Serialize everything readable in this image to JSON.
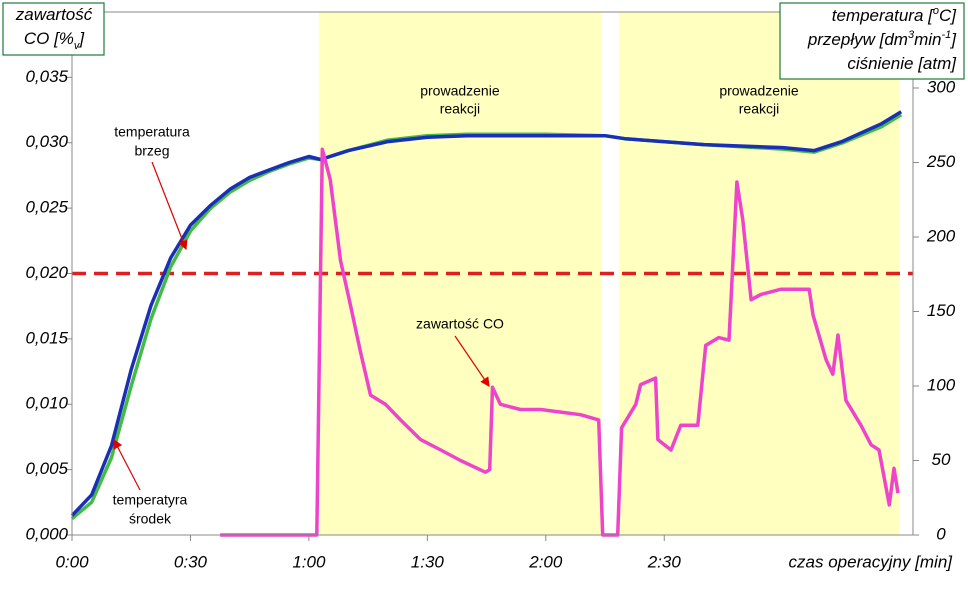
{
  "chart_data": {
    "type": "line",
    "ylabel": [
      [
        {
          "text": "zawartość"
        }
      ],
      [
        {
          "text": "CO [%"
        },
        {
          "text": "v",
          "shift": "sub"
        },
        {
          "text": "]"
        }
      ]
    ],
    "y2label": [
      [
        {
          "text": "temperatura ["
        },
        {
          "text": "o",
          "shift": "super"
        },
        {
          "text": "C]"
        }
      ],
      [
        {
          "text": "przepływ [dm"
        },
        {
          "text": "3",
          "shift": "super"
        },
        {
          "text": "min"
        },
        {
          "text": "-1",
          "shift": "super"
        },
        {
          "text": "]"
        }
      ],
      [
        {
          "text": "ciśnienie [atm]"
        }
      ]
    ],
    "xlabel": "czas operacyjny [min]",
    "xlim": [
      0,
      213
    ],
    "xticks": [
      {
        "value": 0,
        "label": "0:00"
      },
      {
        "value": 30,
        "label": "0:30"
      },
      {
        "value": 60,
        "label": "1:00"
      },
      {
        "value": 90,
        "label": "1:30"
      },
      {
        "value": 120,
        "label": "2:00"
      },
      {
        "value": 150,
        "label": "2:30"
      }
    ],
    "ylim": [
      0,
      0.04
    ],
    "yticks": [
      {
        "value": 0,
        "label": "0,000"
      },
      {
        "value": 0.005,
        "label": "0,005"
      },
      {
        "value": 0.01,
        "label": "0,010"
      },
      {
        "value": 0.015,
        "label": "0,015"
      },
      {
        "value": 0.02,
        "label": "0,020"
      },
      {
        "value": 0.025,
        "label": "0,025"
      },
      {
        "value": 0.03,
        "label": "0,030"
      },
      {
        "value": 0.035,
        "label": "0,035"
      }
    ],
    "y2lim": [
      0,
      351
    ],
    "y2ticks": [
      0,
      50,
      100,
      150,
      200,
      250,
      300
    ],
    "highlight_bands": [
      {
        "x": [
          62.5,
          134
        ],
        "color": "#ffffc0",
        "label": [
          "prowadzenie",
          "reakcji"
        ]
      },
      {
        "x": [
          138.5,
          209.5
        ],
        "color": "#ffffc0",
        "label": [
          "prowadzenie",
          "reakcji"
        ]
      }
    ],
    "reference_line": {
      "value": 0.02,
      "color": "#e02020"
    },
    "series": [
      {
        "color": "#44bb44",
        "axis": "y2",
        "x": [
          0,
          5,
          10,
          15,
          20,
          25,
          30,
          35,
          40,
          45,
          50,
          55,
          60,
          63,
          70,
          80,
          90,
          100,
          120,
          135,
          140,
          160,
          180,
          188,
          195,
          205,
          210
        ],
        "values": [
          11,
          22,
          52,
          100,
          145,
          180,
          204,
          219,
          230,
          238,
          244,
          249,
          253,
          252,
          258,
          265,
          268,
          269,
          269,
          268,
          266,
          262,
          259,
          257,
          263,
          274,
          282
        ]
      },
      {
        "color": "#1a2fb8",
        "axis": "y2",
        "x": [
          0,
          5,
          10,
          15,
          20,
          25,
          30,
          35,
          40,
          45,
          50,
          55,
          60,
          63,
          70,
          80,
          90,
          100,
          120,
          135,
          140,
          160,
          180,
          188,
          195,
          205,
          210
        ],
        "values": [
          13,
          27,
          60,
          111,
          154,
          186,
          208,
          221,
          232,
          240,
          245,
          250,
          254,
          252,
          258,
          264,
          267,
          268,
          268,
          268,
          266,
          262,
          260,
          258,
          264,
          276,
          284
        ]
      },
      {
        "color": "#ee44cc",
        "axis": "y",
        "x": [
          37.5,
          62,
          63.4,
          65.4,
          68,
          70.5,
          73,
          75.6,
          79.4,
          83.2,
          88.3,
          93.4,
          98.4,
          104.7,
          105.8,
          106.5,
          108.5,
          113.6,
          118.7,
          123.8,
          128.8,
          133.4,
          134.4,
          138.2,
          139.2,
          142.8,
          144,
          147.8,
          148.4,
          151.7,
          154.2,
          158.5,
          160.5,
          163.8,
          166.4,
          168.4,
          169.9,
          172,
          174.5,
          179.6,
          186.7,
          187.7,
          191,
          192.7,
          194,
          196,
          199.8,
          202.4,
          204.4,
          207,
          208.2,
          209.2
        ],
        "values": [
          0,
          0,
          0.0295,
          0.0272,
          0.021,
          0.0176,
          0.0141,
          0.0107,
          0.01,
          0.0088,
          0.0073,
          0.0065,
          0.0057,
          0.0048,
          0.005,
          0.0113,
          0.01,
          0.0096,
          0.0096,
          0.0094,
          0.0092,
          0.0088,
          0,
          0,
          0.0082,
          0.01,
          0.0115,
          0.012,
          0.0073,
          0.0065,
          0.0084,
          0.0084,
          0.0145,
          0.0151,
          0.0149,
          0.027,
          0.0241,
          0.018,
          0.0184,
          0.0188,
          0.0188,
          0.0168,
          0.0134,
          0.0123,
          0.0153,
          0.0103,
          0.0084,
          0.0069,
          0.0065,
          0.0023,
          0.0051,
          0.0032
        ]
      }
    ],
    "annotations": [
      {
        "lines": [
          "temperatura",
          "brzeg"
        ]
      },
      {
        "lines": [
          "temperatyra",
          "środek"
        ]
      },
      {
        "lines": [
          "zawartość CO"
        ]
      }
    ]
  }
}
